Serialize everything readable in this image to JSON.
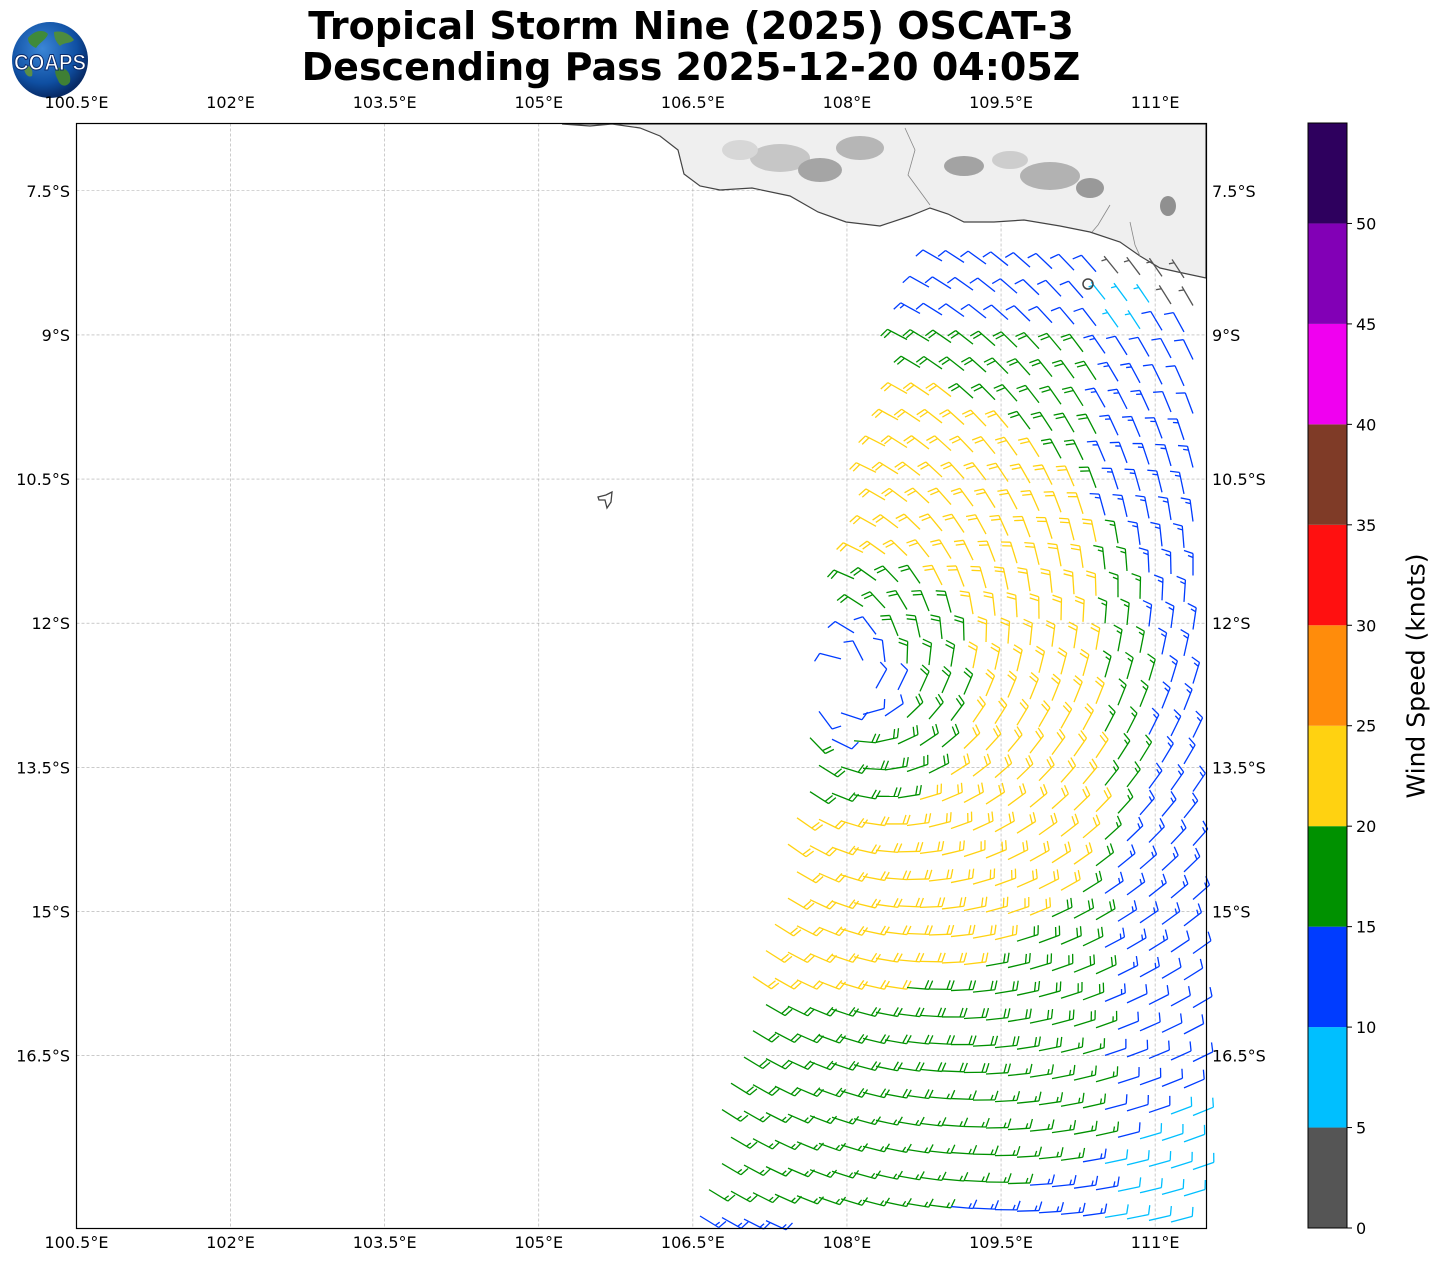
{
  "title": {
    "line1": "Tropical Storm Nine (2025) OSCAT-3",
    "line2": "Descending Pass 2025-12-20 04:05Z"
  },
  "logo": {
    "text": "COAPS",
    "icon": "globe-icon"
  },
  "map": {
    "lon_range": [
      100.5,
      111.5
    ],
    "lat_range": [
      -18.3,
      -6.8
    ],
    "lon_ticks": [
      {
        "value": 100.5,
        "label": "100.5°E"
      },
      {
        "value": 102.0,
        "label": "102°E"
      },
      {
        "value": 103.5,
        "label": "103.5°E"
      },
      {
        "value": 105.0,
        "label": "105°E"
      },
      {
        "value": 106.5,
        "label": "106.5°E"
      },
      {
        "value": 108.0,
        "label": "108°E"
      },
      {
        "value": 109.5,
        "label": "109.5°E"
      },
      {
        "value": 111.0,
        "label": "111°E"
      }
    ],
    "lat_ticks": [
      {
        "value": -7.5,
        "label": "7.5°S"
      },
      {
        "value": -9.0,
        "label": "9°S"
      },
      {
        "value": -10.5,
        "label": "10.5°S"
      },
      {
        "value": -12.0,
        "label": "12°S"
      },
      {
        "value": -13.5,
        "label": "13.5°S"
      },
      {
        "value": -15.0,
        "label": "15°S"
      },
      {
        "value": -16.5,
        "label": "16.5°S"
      }
    ],
    "grid": true,
    "storm_center": {
      "lon": 107.95,
      "lat": -12.6
    },
    "coastline_color": "#444444",
    "land_color": "#efefef",
    "features": [
      "java-coast",
      "christmas-island"
    ]
  },
  "colorbar": {
    "label": "Wind Speed (knots)",
    "ticks": [
      0,
      5,
      10,
      15,
      20,
      25,
      30,
      35,
      40,
      45,
      50
    ],
    "bins": [
      {
        "min": 0,
        "max": 5,
        "color": "#555555"
      },
      {
        "min": 5,
        "max": 10,
        "color": "#00bfff"
      },
      {
        "min": 10,
        "max": 15,
        "color": "#003cff"
      },
      {
        "min": 15,
        "max": 20,
        "color": "#009100"
      },
      {
        "min": 20,
        "max": 25,
        "color": "#ffd211"
      },
      {
        "min": 25,
        "max": 30,
        "color": "#ff8c0b"
      },
      {
        "min": 30,
        "max": 35,
        "color": "#ff1010"
      },
      {
        "min": 35,
        "max": 40,
        "color": "#7f3b27"
      },
      {
        "min": 40,
        "max": 45,
        "color": "#f000f0"
      },
      {
        "min": 45,
        "max": 50,
        "color": "#8200b6"
      },
      {
        "min": 50,
        "max": 55,
        "color": "#2e005e"
      }
    ]
  }
}
